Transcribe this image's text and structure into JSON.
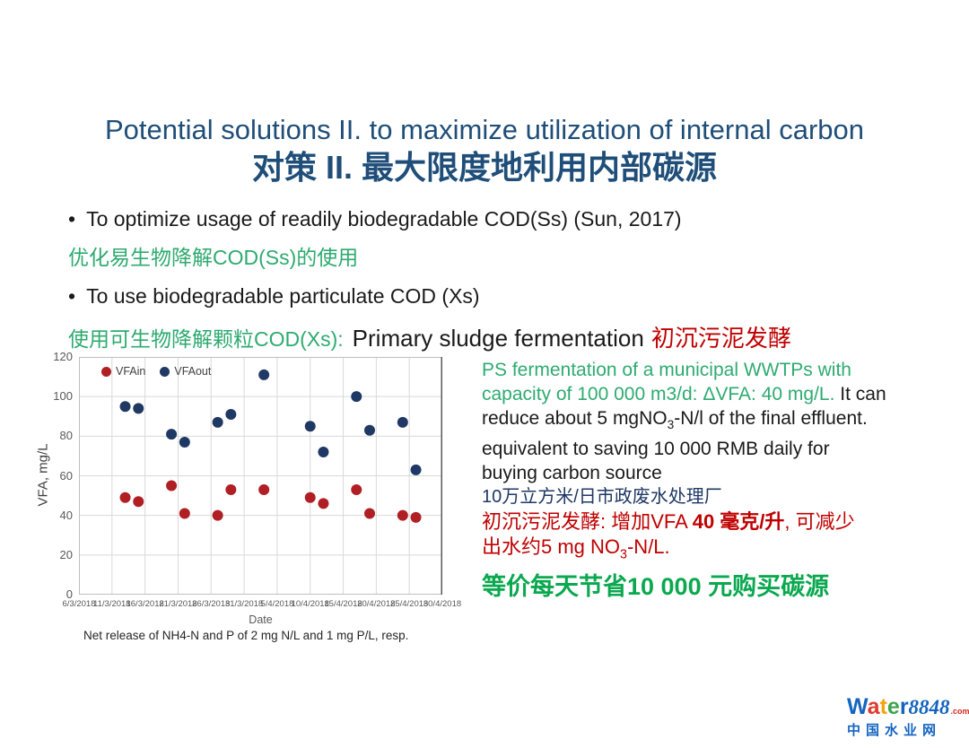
{
  "colors": {
    "title_blue": "#1f4e79",
    "green": "#2eab70",
    "green_bold": "#0aa84f",
    "red": "#c00000",
    "navy": "#1f3864",
    "body": "#1a1a1a",
    "vfain_red": "#b01f24",
    "vfaout_navy": "#1f3864",
    "brand_blue": "#1565c0",
    "brand_red": "#cc2a1e"
  },
  "header": {
    "title_en": "Potential solutions II. to maximize utilization of internal carbon",
    "title_zh": "对策 II. 最大限度地利用内部碳源"
  },
  "bullets": {
    "marker": "•",
    "item1_en": "To optimize usage of readily biodegradable COD(Ss) (Sun, 2017)",
    "item1_zh": "优化易生物降解COD(Ss)的使用",
    "item2_en": "To use biodegradable particulate COD (Xs)",
    "item3_zh_green": "使用可生物降解颗粒COD(Xs):",
    "item3_en_black": "Primary sludge fermentation",
    "item3_zh_red": "初沉污泥发酵"
  },
  "chart_data": {
    "type": "scatter",
    "title": "",
    "xlabel": "Date",
    "ylabel": "VFA, mg/L",
    "ylim": [
      0,
      120
    ],
    "yticks": [
      0,
      20,
      40,
      60,
      80,
      100,
      120
    ],
    "grid": true,
    "legend_position": "top-left-inside",
    "x_axis_start_date": "6/3/2018",
    "x_day_span": 55,
    "xtick_labels": [
      "6/3/2018",
      "11/3/2018",
      "16/3/2018",
      "21/3/2018",
      "26/3/2018",
      "31/3/2018",
      "5/4/2018",
      "10/4/2018",
      "15/4/2018",
      "20/4/2018",
      "25/4/2018",
      "30/4/2018"
    ],
    "series": [
      {
        "name": "VFAin",
        "color": "#b01f24",
        "x_days": [
          7,
          9,
          14,
          16,
          21,
          23,
          28,
          35,
          37,
          42,
          44,
          49,
          51
        ],
        "dates": [
          "13/3/2018",
          "15/3/2018",
          "20/3/2018",
          "22/3/2018",
          "27/3/2018",
          "29/3/2018",
          "3/4/2018",
          "10/4/2018",
          "12/4/2018",
          "17/4/2018",
          "19/4/2018",
          "24/4/2018",
          "26/4/2018"
        ],
        "values": [
          49,
          47,
          55,
          41,
          40,
          53,
          53,
          49,
          46,
          53,
          41,
          40,
          39
        ]
      },
      {
        "name": "VFAout",
        "color": "#1f3864",
        "x_days": [
          7,
          9,
          14,
          16,
          21,
          23,
          28,
          35,
          37,
          42,
          44,
          49,
          51
        ],
        "dates": [
          "13/3/2018",
          "15/3/2018",
          "20/3/2018",
          "22/3/2018",
          "27/3/2018",
          "29/3/2018",
          "3/4/2018",
          "10/4/2018",
          "12/4/2018",
          "17/4/2018",
          "19/4/2018",
          "24/4/2018",
          "26/4/2018"
        ],
        "values": [
          95,
          94,
          81,
          77,
          87,
          91,
          111,
          85,
          72,
          100,
          83,
          87,
          63
        ]
      }
    ],
    "caption": "Net release of NH4-N and P of 2 mg N/L and 1 mg P/L, resp."
  },
  "note_lines": [
    {
      "variant": "latin",
      "segments": [
        {
          "text": "PS fermentation of a municipal WWTPs with",
          "color": "green"
        }
      ]
    },
    {
      "variant": "latin",
      "segments": [
        {
          "text": "capacity of 100 000 m3/d: ΔVFA: 40 mg/L.",
          "color": "green"
        },
        {
          "text": " It can",
          "color": "body"
        }
      ]
    },
    {
      "variant": "latin",
      "segments": [
        {
          "text": "reduce about 5 mgNO",
          "color": "body"
        },
        {
          "text": "3",
          "color": "body",
          "sub": true
        },
        {
          "text": "-N/l of the final effluent.",
          "color": "body"
        }
      ]
    },
    {
      "variant": "latin",
      "segments": [
        {
          "text": "equivalent to saving 10 000 RMB daily for",
          "color": "body"
        }
      ]
    },
    {
      "variant": "latin",
      "segments": [
        {
          "text": "buying carbon source",
          "color": "body"
        }
      ]
    },
    {
      "variant": "navy",
      "segments": [
        {
          "text": "10万立方米/日市政废水处理厂",
          "color": "navy"
        }
      ]
    },
    {
      "variant": "red",
      "segments": [
        {
          "text": "初沉污泥发酵: 增加VFA ",
          "color": "red"
        },
        {
          "text": "40 毫克/升",
          "color": "red",
          "bold": true
        },
        {
          "text": ", 可减少",
          "color": "red"
        }
      ]
    },
    {
      "variant": "red",
      "segments": [
        {
          "text": "出水约5 mg NO",
          "color": "red"
        },
        {
          "text": "3",
          "color": "red",
          "sub": true
        },
        {
          "text": "-N/L.",
          "color": "red"
        }
      ]
    },
    {
      "variant": "green-big",
      "segments": [
        {
          "text": "等价每天节省10 000 元购买碳源",
          "color": "green_bold",
          "bold": true
        }
      ]
    }
  ],
  "watermark": {
    "brand_letters": [
      {
        "ch": "W",
        "color": "#1565c0"
      },
      {
        "ch": "a",
        "color": "#e03a2f"
      },
      {
        "ch": "t",
        "color": "#f2a30f"
      },
      {
        "ch": "e",
        "color": "#3fa34d"
      },
      {
        "ch": "r",
        "color": "#1565c0"
      }
    ],
    "brand_number": "8848",
    "brand_tld": ".com",
    "tagline": "中国水业网"
  }
}
